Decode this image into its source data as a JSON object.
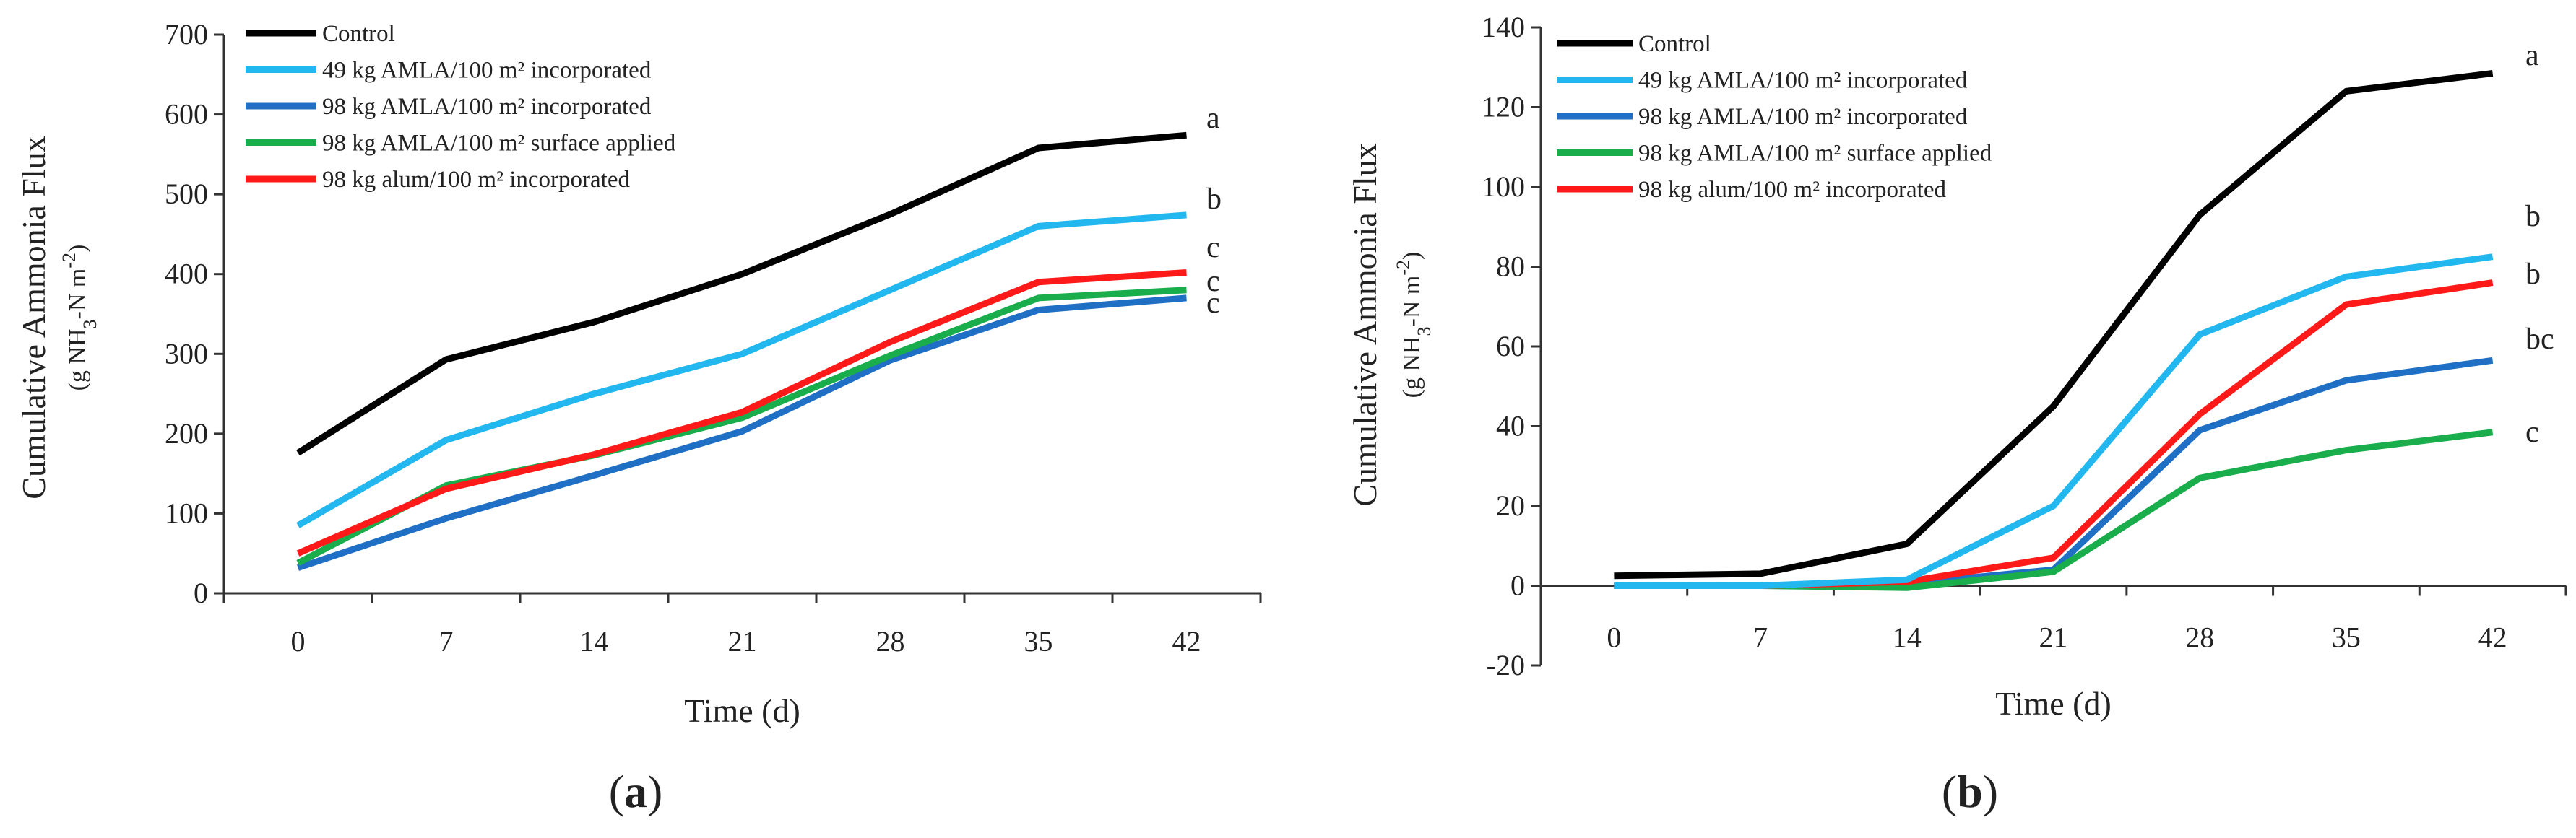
{
  "chart_data": [
    {
      "type": "line",
      "panel_label": "(a)",
      "panel_letter": "a",
      "xlabel": "Time (d)",
      "ylabel_main": "Cumulative Ammonia Flux",
      "ylabel_unit": "(g NH3-N m-2)",
      "ylabel_parts": [
        "(g NH",
        "3",
        "-N  m",
        "-2",
        ")"
      ],
      "x": [
        0,
        7,
        14,
        21,
        28,
        35,
        42
      ],
      "ylim": [
        0,
        700
      ],
      "yticks": [
        0,
        100,
        200,
        300,
        400,
        500,
        600,
        700
      ],
      "legend_position": "top-left",
      "series": [
        {
          "name": "Control",
          "color": "#000000",
          "values": [
            176,
            293,
            340,
            400,
            475,
            558,
            574
          ],
          "significance": "a"
        },
        {
          "name": "49 kg AMLA/100 m² incorporated",
          "color": "#22b8ef",
          "values": [
            85,
            192,
            250,
            300,
            380,
            460,
            474
          ],
          "significance": "b"
        },
        {
          "name": "98 kg AMLA/100 m² incorporated",
          "color": "#1f6fc5",
          "values": [
            32,
            94,
            148,
            203,
            292,
            355,
            370
          ],
          "significance": "c"
        },
        {
          "name": "98 kg AMLA/100 m² surface applied",
          "color": "#19ad4c",
          "values": [
            38,
            135,
            173,
            220,
            298,
            370,
            380
          ],
          "significance": "c"
        },
        {
          "name": "98 kg alum/100 m² incorporated",
          "color": "#ff1a1a",
          "values": [
            50,
            131,
            174,
            227,
            315,
            390,
            402
          ],
          "significance": "c"
        }
      ]
    },
    {
      "type": "line",
      "panel_label": "(b)",
      "panel_letter": "b",
      "xlabel": "Time (d)",
      "ylabel_main": "Cumulative Ammonia Flux",
      "ylabel_unit": "(g NH3-N m-2)",
      "ylabel_parts": [
        "(g NH",
        "3",
        "-N  m",
        "-2",
        ")"
      ],
      "x": [
        0,
        7,
        14,
        21,
        28,
        35,
        42
      ],
      "ylim": [
        -20,
        140
      ],
      "yticks": [
        -20,
        0,
        20,
        40,
        60,
        80,
        100,
        120,
        140
      ],
      "legend_position": "top-left",
      "series": [
        {
          "name": "Control",
          "color": "#000000",
          "values": [
            2.5,
            3,
            10.5,
            45,
            93,
            124,
            128.5
          ],
          "significance": "a"
        },
        {
          "name": "49 kg AMLA/100 m² incorporated",
          "color": "#22b8ef",
          "values": [
            0,
            0,
            1.5,
            20,
            63,
            77.5,
            82.5
          ],
          "significance": "b"
        },
        {
          "name": "98 kg AMLA/100 m² incorporated",
          "color": "#1f6fc5",
          "values": [
            0,
            0,
            0.5,
            4,
            39,
            51.5,
            56.5
          ],
          "significance": "bc"
        },
        {
          "name": "98 kg AMLA/100 m² surface applied",
          "color": "#19ad4c",
          "values": [
            0,
            0,
            -0.5,
            3.5,
            27,
            34,
            38.5
          ],
          "significance": "c"
        },
        {
          "name": "98 kg alum/100 m² incorporated",
          "color": "#ff1a1a",
          "values": [
            0,
            0,
            1,
            7,
            43,
            70.5,
            76
          ],
          "significance": "b"
        }
      ]
    }
  ]
}
